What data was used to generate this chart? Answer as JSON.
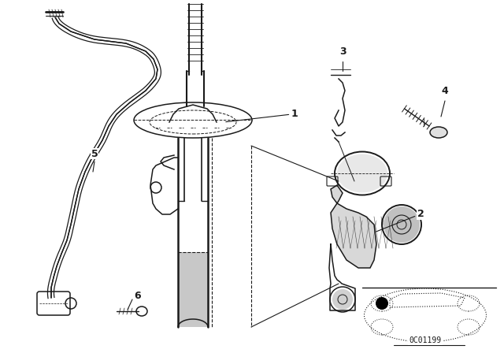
{
  "background_color": "#ffffff",
  "line_color": "#1a1a1a",
  "diagram_code": "0C01199",
  "fig_width": 6.4,
  "fig_height": 4.48,
  "dpi": 100
}
